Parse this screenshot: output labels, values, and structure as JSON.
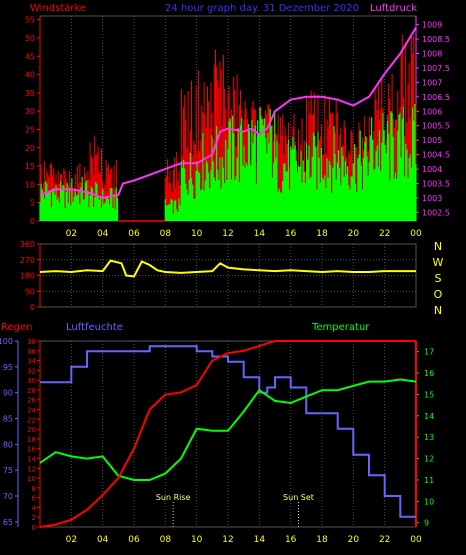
{
  "chart_data": [
    {
      "id": "wind_pressure",
      "type": "line",
      "title": "24 hour graph day. 31 Dezember 2020",
      "left_axis_label": "Windstärke",
      "right_axis_label": "Luftdruck",
      "x_ticks": [
        "02",
        "04",
        "06",
        "08",
        "10",
        "12",
        "14",
        "16",
        "18",
        "20",
        "22",
        "00"
      ],
      "wind_ylim": [
        0,
        56
      ],
      "wind_ticks": [
        0,
        5,
        10,
        15,
        20,
        25,
        30,
        35,
        40,
        45,
        50,
        55
      ],
      "pressure_ylim": [
        1002.2,
        1009.3
      ],
      "pressure_ticks": [
        1002.5,
        1003,
        1003.5,
        1004,
        1004.5,
        1005,
        1005.5,
        1006,
        1006.5,
        1007,
        1007.5,
        1008,
        1008.5,
        1009
      ],
      "wind_mean_hourly": [
        8,
        7,
        8,
        7,
        6,
        0,
        0,
        0,
        4,
        13,
        16,
        17,
        19,
        21,
        21,
        15,
        15,
        16,
        17,
        16,
        16,
        20,
        20,
        21
      ],
      "wind_gust_hourly": [
        16,
        14,
        15,
        23,
        16,
        0,
        0,
        0,
        18,
        37,
        40,
        48,
        39,
        33,
        31,
        29,
        28,
        35,
        33,
        28,
        31,
        38,
        40,
        49
      ],
      "pressure_points": [
        [
          0,
          1003.1
        ],
        [
          1,
          1003.3
        ],
        [
          2,
          1003.3
        ],
        [
          3,
          1003.2
        ],
        [
          4,
          1003.0
        ],
        [
          5,
          1003.1
        ],
        [
          5.3,
          1003.5
        ],
        [
          6,
          1003.6
        ],
        [
          7,
          1003.8
        ],
        [
          8,
          1004.0
        ],
        [
          9,
          1004.2
        ],
        [
          10,
          1004.2
        ],
        [
          11,
          1004.5
        ],
        [
          11.5,
          1005.3
        ],
        [
          12,
          1005.4
        ],
        [
          13,
          1005.3
        ],
        [
          13.5,
          1005.4
        ],
        [
          14,
          1005.2
        ],
        [
          14.5,
          1005.4
        ],
        [
          15,
          1006.0
        ],
        [
          16,
          1006.4
        ],
        [
          17,
          1006.5
        ],
        [
          18,
          1006.5
        ],
        [
          19,
          1006.4
        ],
        [
          20,
          1006.2
        ],
        [
          21,
          1006.5
        ],
        [
          22,
          1007.3
        ],
        [
          23,
          1008.0
        ],
        [
          24,
          1008.9
        ]
      ]
    },
    {
      "id": "wind_direction",
      "type": "line",
      "x_ticks": [
        "02",
        "04",
        "06",
        "08",
        "10",
        "12",
        "14",
        "16",
        "18",
        "20",
        "22",
        "00"
      ],
      "ylim": [
        0,
        360
      ],
      "y_ticks": [
        0,
        90,
        180,
        270,
        360
      ],
      "compass_labels": [
        "N",
        "W",
        "S",
        "O",
        "N"
      ],
      "direction_points": [
        [
          0,
          200
        ],
        [
          1,
          205
        ],
        [
          2,
          200
        ],
        [
          3,
          210
        ],
        [
          4,
          205
        ],
        [
          4.5,
          265
        ],
        [
          5.2,
          250
        ],
        [
          5.5,
          180
        ],
        [
          6,
          175
        ],
        [
          6.5,
          260
        ],
        [
          7,
          240
        ],
        [
          7.5,
          210
        ],
        [
          8,
          200
        ],
        [
          9,
          195
        ],
        [
          10,
          200
        ],
        [
          11,
          205
        ],
        [
          11.5,
          250
        ],
        [
          12,
          225
        ],
        [
          13,
          215
        ],
        [
          14,
          210
        ],
        [
          15,
          205
        ],
        [
          16,
          210
        ],
        [
          17,
          205
        ],
        [
          18,
          200
        ],
        [
          19,
          205
        ],
        [
          20,
          200
        ],
        [
          21,
          200
        ],
        [
          22,
          205
        ],
        [
          23,
          205
        ],
        [
          24,
          205
        ]
      ]
    },
    {
      "id": "rain_humidity_temp",
      "type": "line",
      "rain_label": "Regen",
      "humidity_label": "Luftfeuchte",
      "temperature_label": "Temperatur",
      "x_ticks": [
        "02",
        "04",
        "06",
        "08",
        "10",
        "12",
        "14",
        "16",
        "18",
        "20",
        "22",
        "00"
      ],
      "rain_ylim": [
        0,
        38
      ],
      "rain_ticks": [
        0,
        2,
        4,
        6,
        8,
        10,
        12,
        14,
        16,
        18,
        20,
        22,
        24,
        26,
        28,
        30,
        32,
        34,
        36,
        38
      ],
      "humidity_ylim": [
        64,
        100
      ],
      "humidity_ticks": [
        65,
        70,
        75,
        80,
        85,
        90,
        95,
        100
      ],
      "temperature_ylim": [
        8.8,
        17.5
      ],
      "temperature_ticks": [
        9,
        10,
        11,
        12,
        13,
        14,
        15,
        16,
        17
      ],
      "rain_points": [
        [
          0,
          0
        ],
        [
          1,
          0.5
        ],
        [
          2,
          1.5
        ],
        [
          3,
          3.5
        ],
        [
          4,
          6.5
        ],
        [
          5,
          10
        ],
        [
          6,
          16
        ],
        [
          7,
          24
        ],
        [
          8,
          27
        ],
        [
          9,
          27.5
        ],
        [
          10,
          29
        ],
        [
          11,
          34
        ],
        [
          12,
          35.5
        ],
        [
          13,
          36
        ],
        [
          14,
          37
        ],
        [
          15,
          38
        ],
        [
          16,
          38
        ],
        [
          24,
          38
        ]
      ],
      "humidity_points": [
        [
          0,
          92
        ],
        [
          1,
          92
        ],
        [
          2,
          95
        ],
        [
          3,
          98
        ],
        [
          4,
          98
        ],
        [
          5,
          98
        ],
        [
          6,
          98
        ],
        [
          7,
          99
        ],
        [
          8,
          99
        ],
        [
          9,
          99
        ],
        [
          10,
          98
        ],
        [
          11,
          97
        ],
        [
          12,
          96
        ],
        [
          13,
          93
        ],
        [
          14,
          90
        ],
        [
          14.5,
          91
        ],
        [
          15,
          93
        ],
        [
          16,
          91
        ],
        [
          17,
          86
        ],
        [
          18,
          86
        ],
        [
          19,
          83
        ],
        [
          20,
          78
        ],
        [
          21,
          74
        ],
        [
          22,
          70
        ],
        [
          23,
          66
        ],
        [
          24,
          66
        ]
      ],
      "temperature_points": [
        [
          0,
          11.8
        ],
        [
          1,
          12.3
        ],
        [
          2,
          12.1
        ],
        [
          3,
          12.0
        ],
        [
          4,
          12.1
        ],
        [
          5,
          11.2
        ],
        [
          6,
          11.0
        ],
        [
          7,
          11.0
        ],
        [
          8,
          11.3
        ],
        [
          9,
          12.0
        ],
        [
          10,
          13.4
        ],
        [
          11,
          13.3
        ],
        [
          12,
          13.3
        ],
        [
          13,
          14.2
        ],
        [
          14,
          15.2
        ],
        [
          15,
          14.7
        ],
        [
          16,
          14.6
        ],
        [
          17,
          14.9
        ],
        [
          18,
          15.2
        ],
        [
          19,
          15.2
        ],
        [
          20,
          15.4
        ],
        [
          21,
          15.6
        ],
        [
          22,
          15.6
        ],
        [
          23,
          15.7
        ],
        [
          24,
          15.6
        ]
      ],
      "annotations": [
        {
          "text": "Sun Rise",
          "x": 8.5
        },
        {
          "text": "Sun Set",
          "x": 16.5
        }
      ]
    }
  ],
  "colors": {
    "wind": "#00ff00",
    "gust": "#ff0000",
    "pressure": "#ff33ff",
    "direction": "#ffff00",
    "rain": "#ff0000",
    "humidity": "#6666ff",
    "temperature": "#00ff00",
    "axis_x": "#ffff00",
    "grid": "#555555"
  }
}
